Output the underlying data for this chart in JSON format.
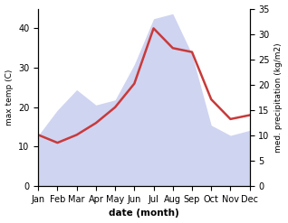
{
  "months": [
    "Jan",
    "Feb",
    "Mar",
    "Apr",
    "May",
    "Jun",
    "Jul",
    "Aug",
    "Sep",
    "Oct",
    "Nov",
    "Dec"
  ],
  "month_indices": [
    0,
    1,
    2,
    3,
    4,
    5,
    6,
    7,
    8,
    9,
    10,
    11
  ],
  "temp": [
    13,
    11,
    13,
    16,
    20,
    26,
    40,
    35,
    34,
    22,
    17,
    18
  ],
  "precip": [
    10,
    15,
    19,
    16,
    17,
    24,
    33,
    34,
    26,
    12,
    10,
    11
  ],
  "temp_color": "#c83a3a",
  "precip_color": "#b0b8e8",
  "temp_ylim": [
    0,
    45
  ],
  "precip_ylim": [
    0,
    35
  ],
  "temp_yticks": [
    0,
    10,
    20,
    30,
    40
  ],
  "precip_yticks": [
    0,
    5,
    10,
    15,
    20,
    25,
    30,
    35
  ],
  "ylabel_left": "max temp (C)",
  "ylabel_right": "med. precipitation (kg/m2)",
  "xlabel": "date (month)",
  "line_width": 1.8
}
